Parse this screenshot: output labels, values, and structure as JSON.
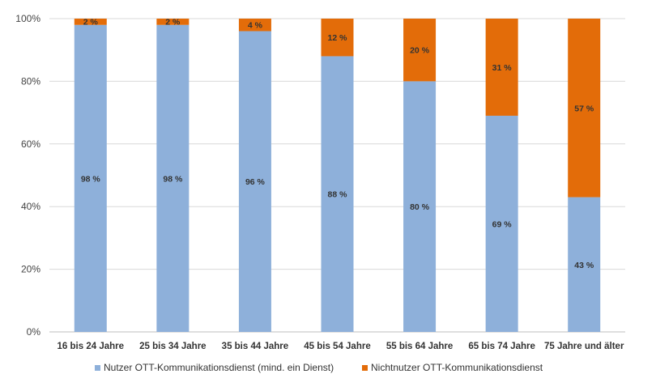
{
  "chart_data": {
    "type": "bar",
    "stacked": true,
    "categories": [
      "16 bis 24 Jahre",
      "25 bis 34 Jahre",
      "35 bis 44 Jahre",
      "45 bis 54 Jahre",
      "55 bis 64 Jahre",
      "65 bis 74 Jahre",
      "75 Jahre und älter"
    ],
    "series": [
      {
        "name": "Nutzer OTT-Kommunikationsdienst (mind. ein Dienst)",
        "values": [
          98,
          98,
          96,
          88,
          80,
          69,
          43
        ],
        "labels": [
          "98 %",
          "98 %",
          "96 %",
          "88 %",
          "80 %",
          "69 %",
          "43 %"
        ],
        "color": "#8eb0da"
      },
      {
        "name": "Nichtnutzer OTT-Kommunikationsdienst",
        "values": [
          2,
          2,
          4,
          12,
          20,
          31,
          57
        ],
        "labels": [
          "2 %",
          "2 %",
          "4 %",
          "12 %",
          "20 %",
          "31 %",
          "57 %"
        ],
        "color": "#e36c09"
      }
    ],
    "yticks": [
      "0%",
      "20%",
      "40%",
      "60%",
      "80%",
      "100%"
    ],
    "ylim": [
      0,
      100
    ],
    "grid": true,
    "legend_position": "bottom",
    "title": "",
    "xlabel": "",
    "ylabel": ""
  }
}
